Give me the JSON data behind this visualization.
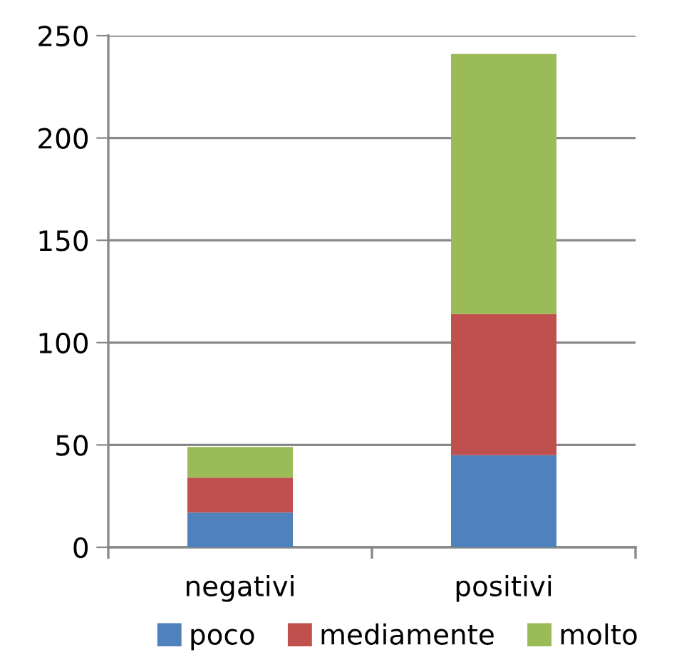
{
  "chart_data": {
    "type": "bar",
    "stacked": true,
    "categories": [
      "negativi",
      "positivi"
    ],
    "series": [
      {
        "name": "poco",
        "color": "#4f81bd",
        "values": [
          17,
          45
        ]
      },
      {
        "name": "mediamente",
        "color": "#c0504d",
        "values": [
          17,
          69
        ]
      },
      {
        "name": "molto",
        "color": "#9bbb59",
        "values": [
          15,
          127
        ]
      }
    ],
    "ylim": [
      0,
      250
    ],
    "yticks": [
      0,
      50,
      100,
      150,
      200,
      250
    ],
    "grid": "y",
    "legend": "bottom"
  }
}
